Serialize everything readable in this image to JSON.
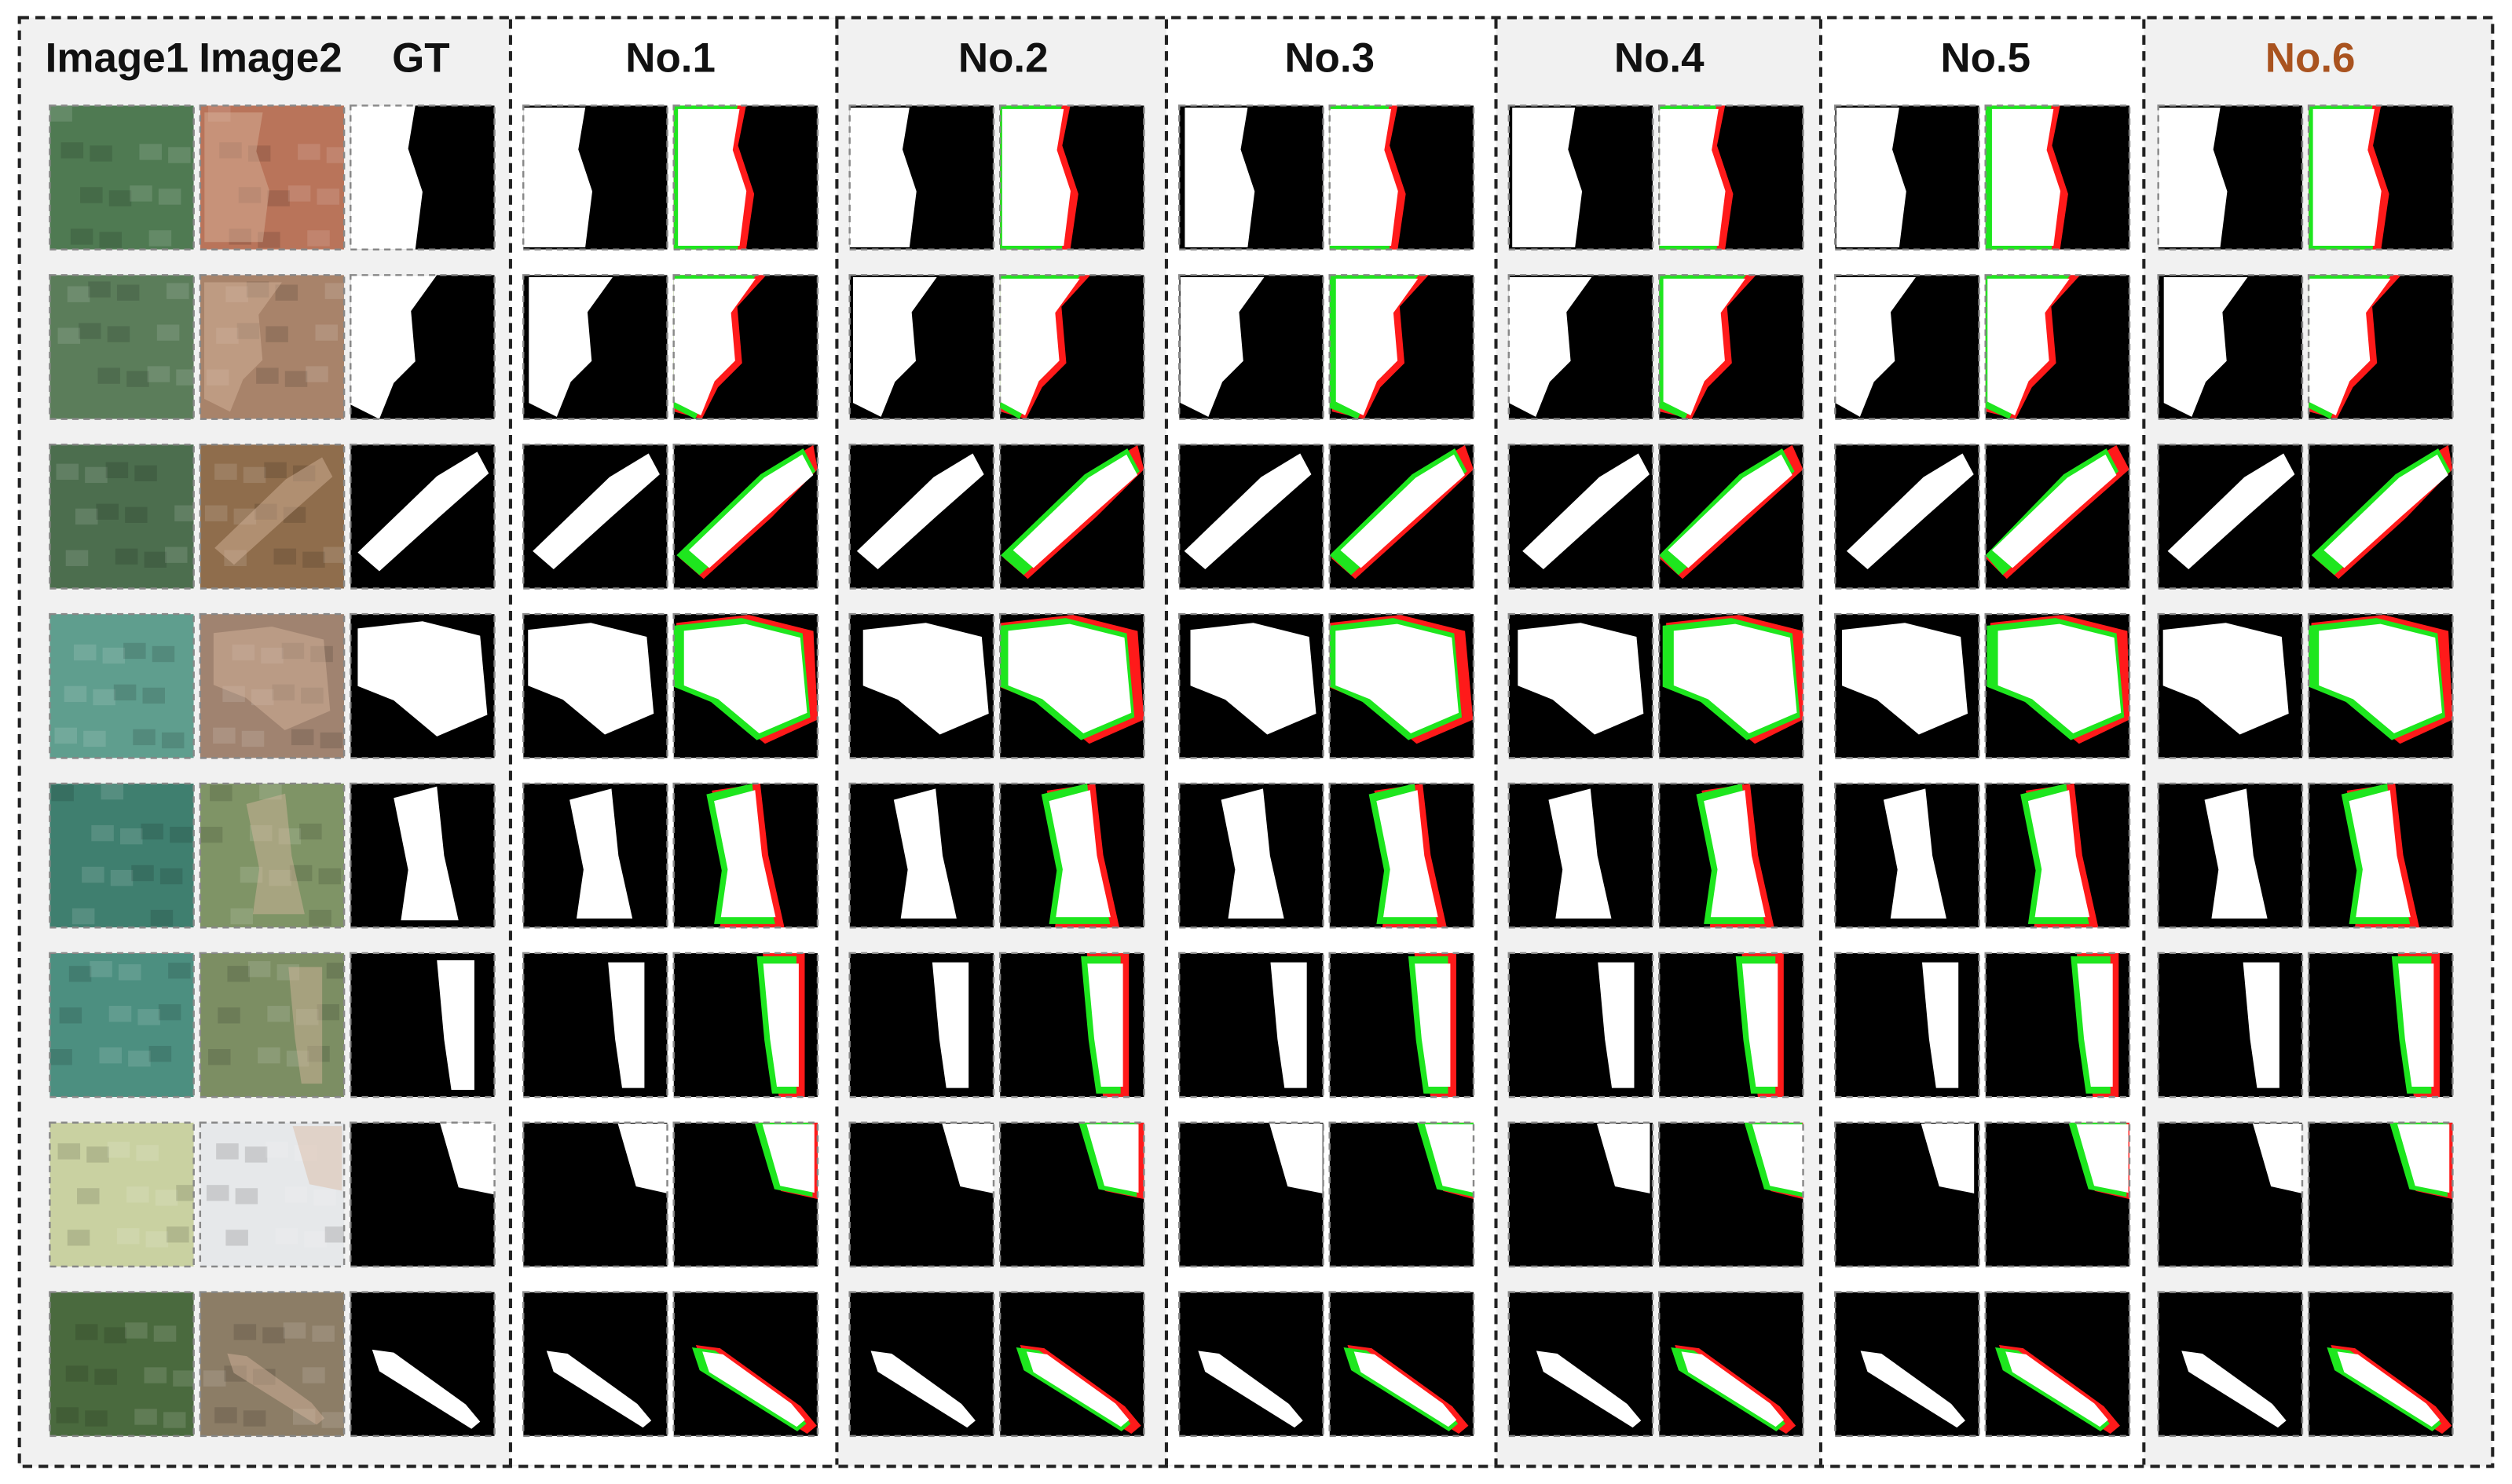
{
  "header": {
    "columns": [
      "Image1",
      "Image2",
      "GT",
      "No.1",
      "No.2",
      "No.3",
      "No.4",
      "No.5",
      "No.6"
    ]
  }
}
